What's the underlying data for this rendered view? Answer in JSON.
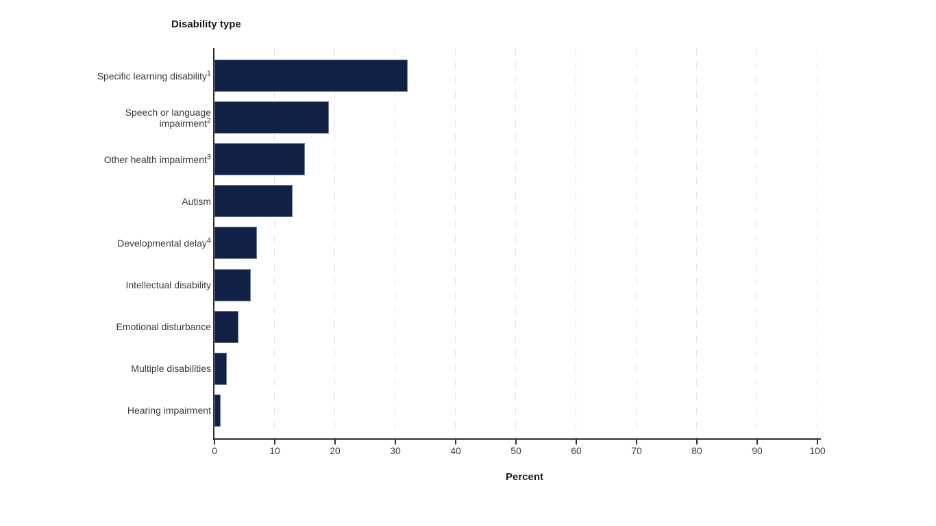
{
  "chart_data": {
    "type": "bar",
    "orientation": "horizontal",
    "title": "Disability type",
    "xlabel": "Percent",
    "xlim": [
      0,
      100
    ],
    "x_ticks": [
      0,
      10,
      20,
      30,
      40,
      50,
      60,
      70,
      80,
      90,
      100
    ],
    "grid": "vertical-dashed",
    "legend": "none",
    "categories": [
      {
        "lines": [
          "Specific learning disability"
        ],
        "sup": "1"
      },
      {
        "lines": [
          "Speech or language",
          "impairment"
        ],
        "sup": "2"
      },
      {
        "lines": [
          "Other health impairment"
        ],
        "sup": "3"
      },
      {
        "lines": [
          "Autism"
        ],
        "sup": ""
      },
      {
        "lines": [
          "Developmental delay"
        ],
        "sup": "4"
      },
      {
        "lines": [
          "Intellectual disability"
        ],
        "sup": ""
      },
      {
        "lines": [
          "Emotional disturbance"
        ],
        "sup": ""
      },
      {
        "lines": [
          "Multiple disabilities"
        ],
        "sup": ""
      },
      {
        "lines": [
          "Hearing impairment"
        ],
        "sup": ""
      }
    ],
    "values": [
      32,
      19,
      15,
      13,
      7,
      6,
      4,
      2,
      1
    ],
    "colors": {
      "bar_fill": "#112145",
      "bar_border": "#6e80a0",
      "axis": "#2e2e2e",
      "grid": "#e3e3e3",
      "tick_text": "#3a3a3a",
      "title_text": "#1b1b1b",
      "background": "#ffffff"
    }
  }
}
